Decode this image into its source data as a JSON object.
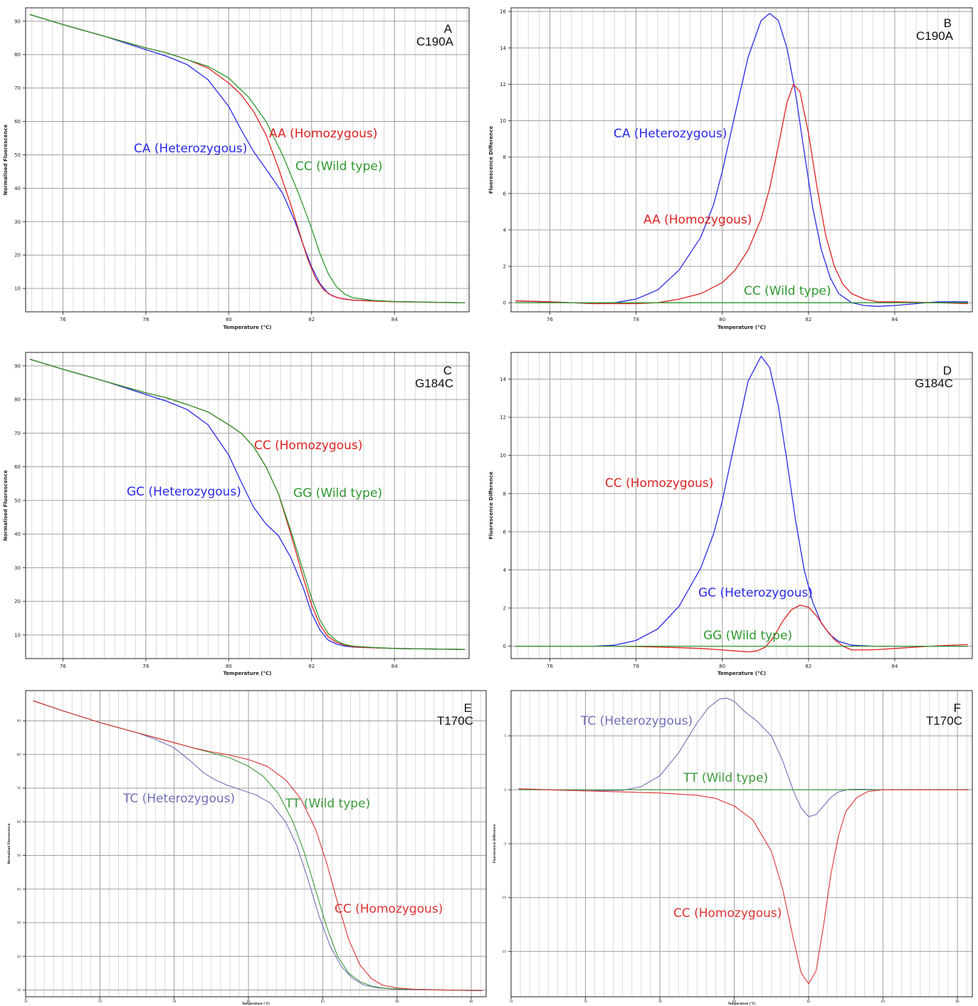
{
  "chart_data": [
    {
      "panel": "A",
      "subtitle": "C190A",
      "type": "line",
      "xlabel": "Temperature (°C)",
      "ylabel": "Normalised Fluorescence",
      "xlim": [
        75.1,
        85.8
      ],
      "ylim": [
        3,
        94
      ],
      "xticks": [
        76,
        78,
        80,
        82,
        84
      ],
      "yticks": [
        10,
        20,
        30,
        40,
        50,
        60,
        70,
        80,
        90
      ],
      "grid": true,
      "series": [
        {
          "label": "CA (Heterozygous)",
          "color": "#2a2ae8",
          "x": [
            75.2,
            76,
            77,
            77.5,
            78,
            78.5,
            79,
            79.5,
            80,
            80.3,
            80.6,
            81,
            81.3,
            81.6,
            81.8,
            82,
            82.2,
            82.4,
            82.6,
            82.8,
            83,
            83.5,
            84,
            85.7
          ],
          "y": [
            92,
            89,
            85.5,
            83.5,
            81.5,
            79.5,
            77,
            72.5,
            64.5,
            57.5,
            51,
            44,
            38.5,
            30,
            23,
            16.5,
            11.5,
            8.5,
            7.3,
            6.8,
            6.5,
            6.3,
            6.1,
            5.7
          ]
        },
        {
          "label": "AA (Homozygous)",
          "color": "#dd2222",
          "x": [
            75.2,
            76,
            77,
            78,
            78.5,
            79,
            79.5,
            80,
            80.3,
            80.6,
            80.9,
            81.2,
            81.5,
            81.7,
            81.9,
            82.1,
            82.3,
            82.5,
            82.7,
            83,
            83.5,
            84,
            85.7
          ],
          "y": [
            92,
            89,
            85.5,
            82,
            80.5,
            78.5,
            76,
            71.5,
            68,
            63,
            56,
            46,
            35,
            27,
            19,
            13,
            9.5,
            7.8,
            7,
            6.5,
            6.2,
            6,
            5.7
          ]
        },
        {
          "label": "CC (Wild type)",
          "color": "#2e9a2e",
          "x": [
            75.2,
            76,
            77,
            78,
            78.5,
            79,
            79.5,
            80,
            80.5,
            80.9,
            81.3,
            81.7,
            82,
            82.2,
            82.4,
            82.6,
            82.8,
            83,
            83.5,
            84,
            85.7
          ],
          "y": [
            92,
            89,
            85.5,
            82,
            80.5,
            78.5,
            76.5,
            73,
            67,
            60,
            50,
            38,
            28,
            20.5,
            14.5,
            10.5,
            8.3,
            7.2,
            6.4,
            6.1,
            5.7
          ]
        }
      ],
      "annotations": [
        "CA (Heterozygous)",
        "AA (Homozygous)",
        "CC (Wild type)"
      ]
    },
    {
      "panel": "B",
      "subtitle": "C190A",
      "type": "line",
      "xlabel": "Temperature (°C)",
      "ylabel": "Fluorescence Difference",
      "xlim": [
        75.1,
        85.8
      ],
      "ylim": [
        -0.5,
        16.2
      ],
      "xticks": [
        76,
        78,
        80,
        82,
        84
      ],
      "yticks": [
        0,
        2,
        4,
        6,
        8,
        10,
        12,
        14,
        16
      ],
      "grid": true,
      "series": [
        {
          "label": "CA (Heterozygous)",
          "color": "#2a2ae8",
          "x": [
            75.2,
            76,
            77,
            77.5,
            78,
            78.5,
            79,
            79.5,
            79.8,
            80,
            80.3,
            80.6,
            80.9,
            81.1,
            81.3,
            81.5,
            81.7,
            81.9,
            82.1,
            82.3,
            82.5,
            82.7,
            83,
            83.3,
            83.6,
            84,
            84.5,
            85,
            85.7
          ],
          "y": [
            0.1,
            0.05,
            -0.05,
            0,
            0.2,
            0.7,
            1.8,
            3.6,
            5.4,
            7.2,
            10.4,
            13.5,
            15.5,
            15.9,
            15.5,
            14,
            11.5,
            8.3,
            5.2,
            2.9,
            1.4,
            0.5,
            0,
            -0.15,
            -0.2,
            -0.15,
            -0.05,
            0.05,
            0.05
          ]
        },
        {
          "label": "AA (Homozygous)",
          "color": "#dd2222",
          "x": [
            75.2,
            76,
            77,
            77.5,
            78,
            78.5,
            79,
            79.5,
            80,
            80.3,
            80.6,
            80.9,
            81.1,
            81.3,
            81.5,
            81.65,
            81.8,
            82,
            82.2,
            82.4,
            82.6,
            82.8,
            83,
            83.3,
            83.6,
            84,
            85,
            85.7
          ],
          "y": [
            0.1,
            0.05,
            -0.05,
            -0.05,
            -0.05,
            0,
            0.2,
            0.5,
            1.1,
            1.8,
            2.9,
            4.6,
            6.3,
            8.6,
            11,
            12,
            11.6,
            9.3,
            6.3,
            3.7,
            2,
            1,
            0.5,
            0.2,
            0.05,
            0.05,
            0,
            -0.05
          ]
        },
        {
          "label": "CC (Wild type)",
          "color": "#2e9a2e",
          "x": [
            75.2,
            85.7
          ],
          "y": [
            0,
            0
          ]
        }
      ],
      "annotations": [
        "CA (Heterozygous)",
        "AA (Homozygous)",
        "CC (Wild type)"
      ]
    },
    {
      "panel": "C",
      "subtitle": "G184C",
      "type": "line",
      "xlabel": "Temperature (°C)",
      "ylabel": "Normalised Fluorescence",
      "xlim": [
        75.1,
        85.8
      ],
      "ylim": [
        3,
        94
      ],
      "xticks": [
        76,
        78,
        80,
        82,
        84
      ],
      "yticks": [
        10,
        20,
        30,
        40,
        50,
        60,
        70,
        80,
        90
      ],
      "grid": true,
      "series": [
        {
          "label": "GC (Heterozygous)",
          "color": "#2a2ae8",
          "x": [
            75.2,
            76,
            77,
            77.5,
            78,
            78.5,
            79,
            79.5,
            80,
            80.3,
            80.6,
            80.9,
            81.2,
            81.5,
            81.8,
            82,
            82.2,
            82.4,
            82.6,
            82.8,
            83,
            83.5,
            84,
            85.7
          ],
          "y": [
            92,
            89,
            85.5,
            83.5,
            81.5,
            79.5,
            77,
            72.5,
            63.5,
            55.5,
            48,
            43,
            39.5,
            33,
            24,
            16.5,
            11.5,
            8.5,
            7.3,
            6.7,
            6.4,
            6.2,
            6,
            5.7
          ]
        },
        {
          "label": "CC (Homozygous)",
          "color": "#dd2222",
          "x": [
            75.2,
            76,
            77,
            78,
            78.5,
            79,
            79.5,
            80,
            80.3,
            80.6,
            80.9,
            81.2,
            81.5,
            81.8,
            82,
            82.2,
            82.4,
            82.6,
            82.8,
            83,
            83.5,
            84,
            85.7
          ],
          "y": [
            92,
            89,
            85.5,
            82,
            80.5,
            78.5,
            76.3,
            72.5,
            70,
            66,
            60,
            52,
            40,
            27,
            19,
            13,
            9.5,
            7.8,
            7,
            6.5,
            6.2,
            6,
            5.7
          ]
        },
        {
          "label": "GG (Wild type)",
          "color": "#2e9a2e",
          "x": [
            75.2,
            76,
            77,
            78,
            78.5,
            79,
            79.5,
            80,
            80.3,
            80.6,
            80.9,
            81.2,
            81.5,
            81.8,
            82,
            82.2,
            82.4,
            82.6,
            82.8,
            83,
            83.5,
            84,
            85.7
          ],
          "y": [
            92,
            89,
            85.5,
            82,
            80.5,
            78.5,
            76.3,
            72.5,
            70,
            66,
            60,
            52,
            41,
            29,
            21,
            14.5,
            10.5,
            8.3,
            7.2,
            6.7,
            6.3,
            6,
            5.7
          ]
        }
      ],
      "annotations": [
        "CC (Homozygous)",
        "GC (Heterozygous)",
        "GG (Wild type)"
      ]
    },
    {
      "panel": "D",
      "subtitle": "G184C",
      "type": "line",
      "xlabel": "Temperature (°C)",
      "ylabel": "Fluorescence Difference",
      "xlim": [
        75.1,
        85.8
      ],
      "ylim": [
        -0.65,
        15.4
      ],
      "xticks": [
        76,
        78,
        80,
        82,
        84
      ],
      "yticks": [
        0,
        2,
        4,
        6,
        8,
        10,
        12,
        14
      ],
      "grid": true,
      "series": [
        {
          "label": "GC (Heterozygous)",
          "color": "#2a2ae8",
          "x": [
            75.2,
            76,
            77,
            77.5,
            78,
            78.5,
            79,
            79.5,
            79.8,
            80,
            80.3,
            80.6,
            80.9,
            81.1,
            81.3,
            81.5,
            81.7,
            81.9,
            82.1,
            82.3,
            82.5,
            82.7,
            83,
            83.5,
            84,
            85,
            85.7
          ],
          "y": [
            0,
            0,
            0,
            0.05,
            0.3,
            0.9,
            2.1,
            4.1,
            5.9,
            7.6,
            10.8,
            13.9,
            15.2,
            14.6,
            12.6,
            9.7,
            6.6,
            4,
            2.3,
            1.2,
            0.6,
            0.25,
            0.05,
            0,
            0,
            0,
            0
          ]
        },
        {
          "label": "CC (Homozygous)",
          "color": "#dd2222",
          "x": [
            75.2,
            76,
            77,
            77.5,
            78,
            78.5,
            79,
            79.5,
            80,
            80.3,
            80.6,
            80.8,
            81,
            81.2,
            81.4,
            81.6,
            81.8,
            82,
            82.2,
            82.4,
            82.6,
            82.8,
            83,
            83.3,
            83.6,
            84,
            84.5,
            85,
            85.7
          ],
          "y": [
            0,
            0,
            0,
            0,
            -0.02,
            -0.05,
            -0.08,
            -0.12,
            -0.2,
            -0.25,
            -0.3,
            -0.25,
            -0.05,
            0.5,
            1.3,
            1.9,
            2.15,
            2.05,
            1.55,
            0.9,
            0.35,
            0,
            -0.2,
            -0.2,
            -0.18,
            -0.12,
            -0.05,
            0.02,
            0.08
          ]
        },
        {
          "label": "GG (Wild type)",
          "color": "#2e9a2e",
          "x": [
            75.2,
            85.7
          ],
          "y": [
            0,
            0
          ]
        }
      ],
      "annotations": [
        "CC (Homozygous)",
        "GC (Heterozygous)",
        "GG (Wild type)"
      ]
    },
    {
      "panel": "E",
      "subtitle": "T170C",
      "type": "line",
      "xlabel": "Temperature (°C)",
      "ylabel": "Normalised Fluorescence",
      "xlim": [
        74,
        86.4
      ],
      "ylim": [
        8,
        99
      ],
      "xticks": [
        74,
        76,
        78,
        80,
        82,
        84,
        86
      ],
      "yticks": [
        10,
        20,
        30,
        40,
        50,
        60,
        70,
        80,
        90
      ],
      "grid": true,
      "series": [
        {
          "label": "TC (Heterozygous)",
          "color": "#7070b8",
          "x": [
            74.2,
            75,
            76,
            77,
            77.5,
            78,
            78.5,
            78.8,
            79.1,
            79.4,
            79.8,
            80.2,
            80.6,
            81,
            81.3,
            81.6,
            81.9,
            82.2,
            82.5,
            82.8,
            83.1,
            83.5,
            84,
            86.3
          ],
          "y": [
            96,
            93,
            89.5,
            86.5,
            84.5,
            82,
            77.5,
            74.5,
            72.5,
            71,
            69.5,
            68,
            65.5,
            60,
            53,
            43,
            32,
            23,
            17,
            13.5,
            11.5,
            10.6,
            10.2,
            9.8
          ]
        },
        {
          "label": "TT (Wild type)",
          "color": "#3c9a3c",
          "x": [
            74.2,
            75,
            76,
            77,
            77.5,
            78,
            78.5,
            79,
            79.5,
            80,
            80.4,
            80.8,
            81.2,
            81.5,
            81.8,
            82.1,
            82.4,
            82.7,
            83,
            83.3,
            83.6,
            84,
            86.3
          ],
          "y": [
            96,
            93,
            89.5,
            86.5,
            85,
            83.5,
            82,
            80.5,
            79,
            76.5,
            73.5,
            68.5,
            60,
            51,
            40,
            29,
            20,
            15,
            12.5,
            11.2,
            10.6,
            10.3,
            9.8
          ]
        },
        {
          "label": "CC (Homozygous)",
          "color": "#dd3333",
          "x": [
            74.2,
            75,
            76,
            77,
            77.5,
            78,
            78.5,
            79,
            79.5,
            80,
            80.5,
            81,
            81.4,
            81.8,
            82.1,
            82.4,
            82.7,
            83,
            83.3,
            83.6,
            84,
            84.5,
            86.3
          ],
          "y": [
            96,
            93,
            89.5,
            86.5,
            85,
            83.5,
            82,
            80.8,
            79.8,
            78.5,
            76.5,
            72.5,
            67,
            58,
            48,
            36,
            25,
            17.5,
            13.5,
            11.5,
            10.6,
            10.2,
            9.8
          ]
        }
      ],
      "annotations": [
        "TC (Heterozygous)",
        "TT (Wild type)",
        "CC (Homozygous)"
      ]
    },
    {
      "panel": "F",
      "subtitle": "T170C",
      "type": "line",
      "xlabel": "Temperature (°C)",
      "ylabel": "Fluorescence Difference",
      "xlim": [
        74,
        86.4
      ],
      "ylim": [
        -19.2,
        9.2
      ],
      "xticks": [
        74,
        76,
        78,
        80,
        82,
        84,
        86
      ],
      "yticks": [
        -15,
        -10,
        -5,
        0,
        5
      ],
      "grid": true,
      "series": [
        {
          "label": "TC (Heterozygous)",
          "color": "#7070b8",
          "x": [
            74.2,
            75,
            76,
            77,
            77.5,
            78,
            78.5,
            79,
            79.3,
            79.6,
            79.8,
            80,
            80.3,
            80.6,
            81,
            81.3,
            81.6,
            81.8,
            82,
            82.2,
            82.4,
            82.6,
            82.8,
            83.1,
            83.5,
            84,
            86.3
          ],
          "y": [
            0.1,
            0,
            -0.1,
            -0.05,
            0.3,
            1.3,
            3.4,
            6.2,
            7.6,
            8.4,
            8.5,
            8.2,
            7.2,
            6.4,
            5,
            2.7,
            -0.2,
            -1.7,
            -2.5,
            -2.3,
            -1.5,
            -0.7,
            -0.2,
            0.05,
            0.05,
            0,
            0
          ]
        },
        {
          "label": "TT (Wild type)",
          "color": "#3c9a3c",
          "x": [
            74.2,
            86.3
          ],
          "y": [
            0,
            0
          ]
        },
        {
          "label": "CC (Homozygous)",
          "color": "#dd3333",
          "x": [
            74.2,
            75,
            76,
            77,
            78,
            78.5,
            79,
            79.5,
            80,
            80.5,
            81,
            81.3,
            81.6,
            81.8,
            82,
            82.2,
            82.4,
            82.6,
            82.8,
            83,
            83.3,
            83.6,
            84,
            85,
            86.3
          ],
          "y": [
            0.1,
            0,
            -0.1,
            -0.2,
            -0.3,
            -0.4,
            -0.5,
            -0.8,
            -1.5,
            -2.8,
            -5.7,
            -9.2,
            -14,
            -17,
            -18,
            -16.8,
            -12.6,
            -7.8,
            -4.3,
            -2,
            -0.7,
            -0.15,
            0,
            0,
            0
          ]
        }
      ],
      "annotations": [
        "TC (Heterozygous)",
        "TT (Wild type)",
        "CC (Homozygous)"
      ]
    }
  ]
}
